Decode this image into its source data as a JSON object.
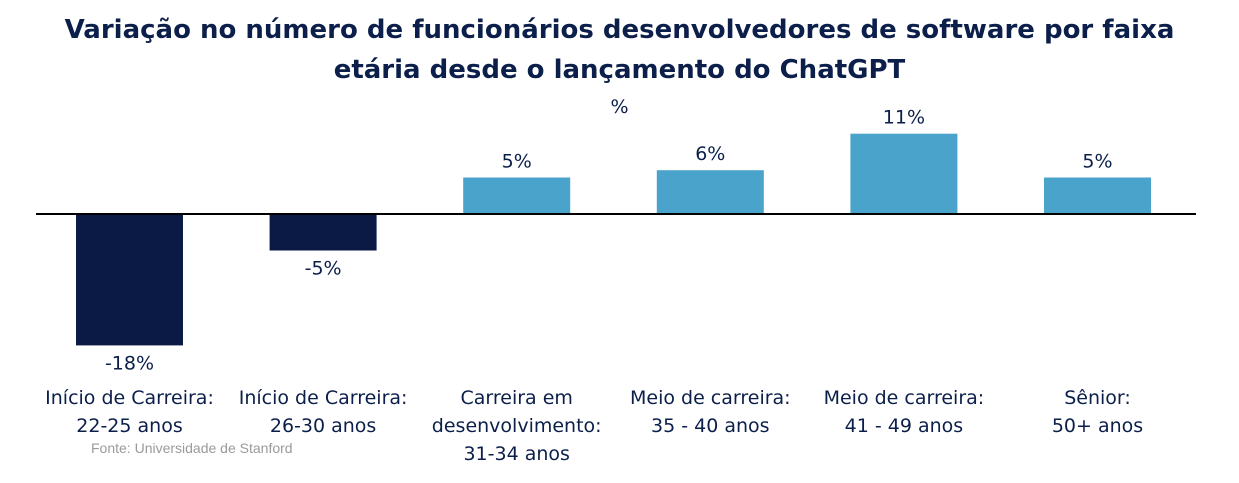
{
  "chart_data": {
    "type": "bar",
    "title_lines": [
      "Variação no número de funcionários desenvolvedores de software por faixa",
      "etária desde o lançamento do ChatGPT"
    ],
    "unit": "%",
    "categories": [
      [
        "Início de Carreira:",
        "22-25 anos"
      ],
      [
        "Início de Carreira:",
        "26-30 anos"
      ],
      [
        "Carreira em",
        "desenvolvimento:",
        "31-34 anos"
      ],
      [
        "Meio de carreira:",
        "35 - 40 anos"
      ],
      [
        "Meio de carreira:",
        "41 - 49 anos"
      ],
      [
        "Sênior:",
        "50+ anos"
      ]
    ],
    "values": [
      -18,
      -5,
      5,
      6,
      11,
      5
    ],
    "value_labels": [
      "-18%",
      "-5%",
      "5%",
      "6%",
      "11%",
      "5%"
    ],
    "negative_color": "#0b1a45",
    "positive_color": "#4aa3cb",
    "ylim": [
      -18,
      11
    ],
    "grid": false
  },
  "source": "Fonte: Universidade de Stanford"
}
